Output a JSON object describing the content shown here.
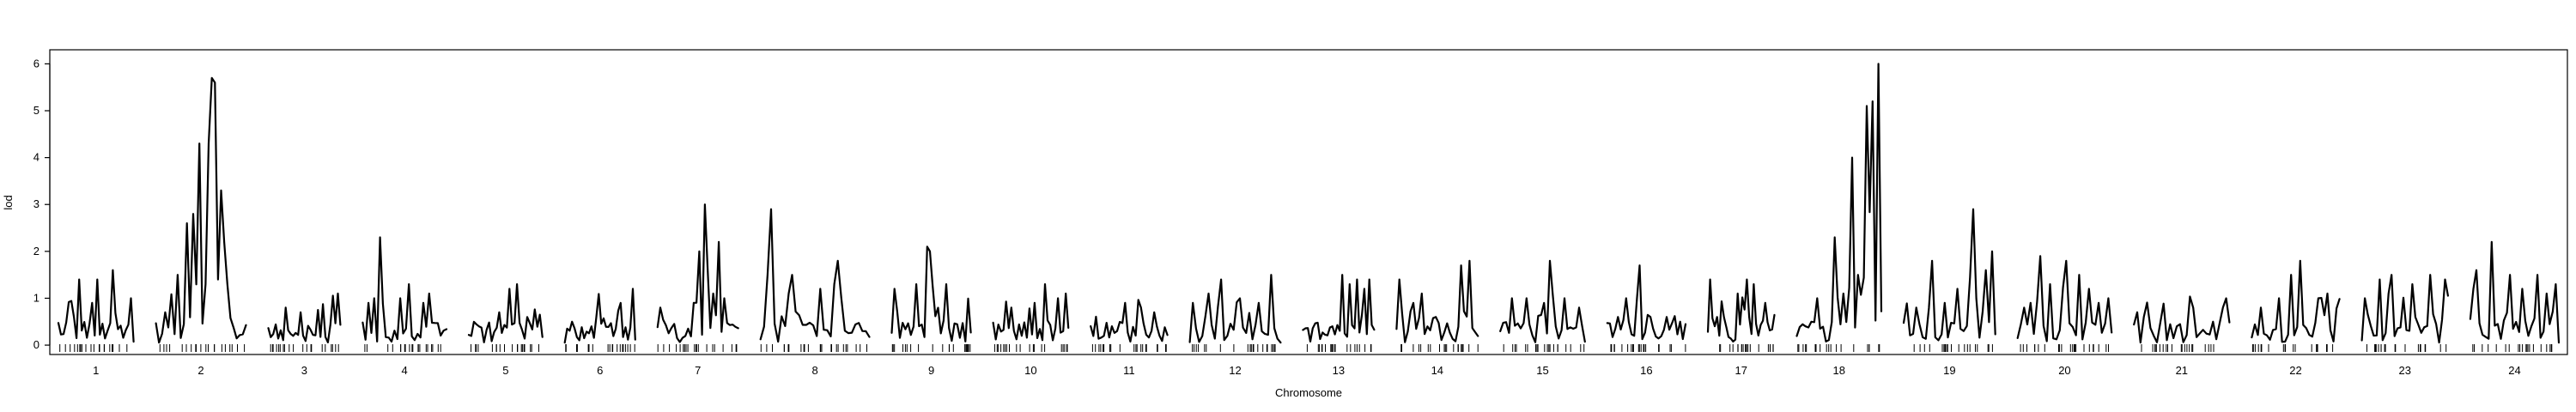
{
  "chart_data": {
    "type": "line",
    "xlabel": "Chromosome",
    "ylabel": "lod",
    "ylim": [
      -0.2,
      6.3
    ],
    "yticks": [
      0,
      1,
      2,
      3,
      4,
      5,
      6
    ],
    "grid": false,
    "chromosomes": [
      {
        "name": "1",
        "length": 96,
        "peaks": [
          [
            0.22,
            0.6
          ],
          [
            0.28,
            1.4
          ],
          [
            0.45,
            0.9
          ],
          [
            0.52,
            1.4
          ],
          [
            0.74,
            1.6
          ],
          [
            0.95,
            1.0
          ]
        ]
      },
      {
        "name": "2",
        "length": 115,
        "peaks": [
          [
            0.1,
            0.7
          ],
          [
            0.25,
            1.5
          ],
          [
            0.34,
            2.6
          ],
          [
            0.43,
            2.8
          ],
          [
            0.47,
            4.3
          ],
          [
            0.55,
            1.3
          ],
          [
            0.59,
            4.3
          ],
          [
            0.62,
            5.7
          ],
          [
            0.65,
            5.6
          ],
          [
            0.7,
            1.4
          ],
          [
            0.74,
            3.3
          ],
          [
            0.8,
            1.3
          ]
        ]
      },
      {
        "name": "3",
        "length": 92,
        "peaks": [
          [
            0.25,
            0.8
          ],
          [
            0.45,
            0.7
          ],
          [
            0.7,
            0.75
          ],
          [
            0.97,
            1.1
          ]
        ]
      },
      {
        "name": "4",
        "length": 107,
        "peaks": [
          [
            0.08,
            0.9
          ],
          [
            0.13,
            1.0
          ],
          [
            0.22,
            2.3
          ],
          [
            0.45,
            1.0
          ],
          [
            0.55,
            1.3
          ],
          [
            0.72,
            0.9
          ],
          [
            0.8,
            1.1
          ]
        ]
      },
      {
        "name": "5",
        "length": 94,
        "peaks": [
          [
            0.4,
            0.7
          ],
          [
            0.55,
            1.2
          ],
          [
            0.65,
            1.3
          ],
          [
            0.8,
            0.6
          ],
          [
            0.95,
            0.65
          ]
        ]
      },
      {
        "name": "6",
        "length": 90,
        "peaks": [
          [
            0.1,
            0.5
          ],
          [
            0.45,
            0.6
          ],
          [
            0.8,
            0.9
          ],
          [
            0.95,
            1.2
          ]
        ]
      },
      {
        "name": "7",
        "length": 103,
        "peaks": [
          [
            0.05,
            0.8
          ],
          [
            0.45,
            0.9
          ],
          [
            0.52,
            2.0
          ],
          [
            0.6,
            3.0
          ],
          [
            0.68,
            1.1
          ],
          [
            0.75,
            2.2
          ],
          [
            0.82,
            1.0
          ]
        ]
      },
      {
        "name": "8",
        "length": 139,
        "peaks": [
          [
            0.06,
            1.5
          ],
          [
            0.09,
            2.9
          ],
          [
            0.25,
            1.1
          ],
          [
            0.3,
            1.5
          ],
          [
            0.55,
            1.2
          ],
          [
            0.68,
            1.3
          ],
          [
            0.72,
            1.8
          ],
          [
            0.95,
            0.3
          ]
        ]
      },
      {
        "name": "9",
        "length": 101,
        "peaks": [
          [
            0.05,
            1.2
          ],
          [
            0.3,
            1.3
          ],
          [
            0.45,
            2.1
          ],
          [
            0.5,
            2.0
          ],
          [
            0.68,
            1.3
          ]
        ]
      },
      {
        "name": "10",
        "length": 96,
        "peaks": [
          [
            0.25,
            0.8
          ],
          [
            0.55,
            0.9
          ],
          [
            0.7,
            1.3
          ],
          [
            0.85,
            1.0
          ],
          [
            0.97,
            1.1
          ]
        ]
      },
      {
        "name": "11",
        "length": 98,
        "peaks": [
          [
            0.35,
            0.3
          ],
          [
            0.45,
            0.9
          ],
          [
            0.65,
            0.8
          ],
          [
            0.82,
            0.7
          ]
        ]
      },
      {
        "name": "12",
        "length": 116,
        "peaks": [
          [
            0.05,
            0.9
          ],
          [
            0.2,
            1.1
          ],
          [
            0.35,
            1.4
          ],
          [
            0.55,
            1.0
          ],
          [
            0.75,
            0.9
          ],
          [
            0.9,
            1.5
          ]
        ]
      },
      {
        "name": "13",
        "length": 91,
        "peaks": [
          [
            0.4,
            0.4
          ],
          [
            0.55,
            1.5
          ],
          [
            0.65,
            1.3
          ],
          [
            0.75,
            1.4
          ],
          [
            0.85,
            1.2
          ],
          [
            0.93,
            1.4
          ]
        ]
      },
      {
        "name": "14",
        "length": 104,
        "peaks": [
          [
            0.05,
            1.4
          ],
          [
            0.22,
            0.9
          ],
          [
            0.3,
            1.1
          ],
          [
            0.5,
            0.6
          ],
          [
            0.8,
            1.7
          ],
          [
            0.9,
            1.8
          ]
        ]
      },
      {
        "name": "15",
        "length": 108,
        "peaks": [
          [
            0.15,
            1.0
          ],
          [
            0.3,
            1.0
          ],
          [
            0.5,
            0.9
          ],
          [
            0.6,
            1.8
          ],
          [
            0.75,
            1.0
          ],
          [
            0.92,
            0.8
          ]
        ]
      },
      {
        "name": "16",
        "length": 100,
        "peaks": [
          [
            0.15,
            0.6
          ],
          [
            0.25,
            1.0
          ],
          [
            0.4,
            1.7
          ],
          [
            0.55,
            0.6
          ],
          [
            0.75,
            0.6
          ],
          [
            0.92,
            0.5
          ]
        ]
      },
      {
        "name": "17",
        "length": 85,
        "peaks": [
          [
            0.05,
            1.4
          ],
          [
            0.15,
            0.6
          ],
          [
            0.45,
            1.1
          ],
          [
            0.6,
            1.4
          ],
          [
            0.7,
            1.3
          ],
          [
            0.85,
            0.9
          ]
        ]
      },
      {
        "name": "18",
        "length": 108,
        "peaks": [
          [
            0.1,
            0.4
          ],
          [
            0.25,
            1.0
          ],
          [
            0.45,
            2.3
          ],
          [
            0.55,
            1.1
          ],
          [
            0.65,
            4.0
          ],
          [
            0.74,
            1.5
          ],
          [
            0.82,
            5.1
          ],
          [
            0.88,
            5.2
          ],
          [
            0.97,
            6.0
          ]
        ]
      },
      {
        "name": "19",
        "length": 117,
        "peaks": [
          [
            0.15,
            0.8
          ],
          [
            0.3,
            1.8
          ],
          [
            0.45,
            0.9
          ],
          [
            0.6,
            1.2
          ],
          [
            0.75,
            2.9
          ],
          [
            0.8,
            1.0
          ],
          [
            0.9,
            1.6
          ],
          [
            0.96,
            2.0
          ]
        ]
      },
      {
        "name": "20",
        "length": 120,
        "peaks": [
          [
            0.08,
            0.8
          ],
          [
            0.15,
            0.9
          ],
          [
            0.25,
            1.9
          ],
          [
            0.35,
            1.3
          ],
          [
            0.5,
            1.8
          ],
          [
            0.65,
            1.5
          ],
          [
            0.75,
            1.2
          ],
          [
            0.85,
            0.9
          ],
          [
            0.95,
            1.0
          ]
        ]
      },
      {
        "name": "21",
        "length": 122,
        "peaks": [
          [
            0.02,
            0.7
          ],
          [
            0.1,
            0.6
          ],
          [
            0.45,
            0.4
          ],
          [
            0.62,
            0.8
          ],
          [
            0.82,
            0.5
          ],
          [
            0.92,
            0.8
          ],
          [
            0.98,
            1.0
          ]
        ]
      },
      {
        "name": "22",
        "length": 112,
        "peaks": [
          [
            0.1,
            0.8
          ],
          [
            0.3,
            1.0
          ],
          [
            0.45,
            1.5
          ],
          [
            0.55,
            1.8
          ],
          [
            0.75,
            1.0
          ],
          [
            0.85,
            1.1
          ]
        ]
      },
      {
        "name": "23",
        "length": 110,
        "peaks": [
          [
            0.05,
            1.0
          ],
          [
            0.2,
            1.4
          ],
          [
            0.35,
            1.5
          ],
          [
            0.6,
            1.3
          ],
          [
            0.8,
            1.5
          ],
          [
            0.95,
            1.4
          ]
        ]
      },
      {
        "name": "24",
        "length": 113,
        "peaks": [
          [
            0.02,
            1.2
          ],
          [
            0.06,
            1.6
          ],
          [
            0.25,
            2.2
          ],
          [
            0.45,
            1.5
          ],
          [
            0.6,
            1.2
          ],
          [
            0.75,
            1.5
          ],
          [
            0.85,
            1.1
          ],
          [
            0.95,
            1.3
          ]
        ]
      }
    ]
  }
}
